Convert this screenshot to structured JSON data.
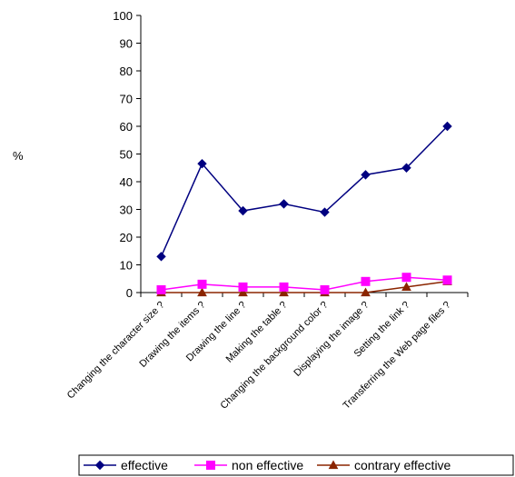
{
  "chart_data": {
    "type": "line",
    "ylabel": "%",
    "ylim": [
      0,
      100
    ],
    "ytick_step": 10,
    "grid": false,
    "legend_position": "bottom",
    "categories": [
      "Changing the character size ?",
      "Drawing the items ?",
      "Drawing the line ?",
      "Making the table ?",
      "Changing the background color ?",
      "Displaying the image ?",
      "Setting the link ?",
      "Transferring the Web page files ?"
    ],
    "series": [
      {
        "name": "effective",
        "color": "#000080",
        "marker": "diamond",
        "values": [
          13,
          46.5,
          29.5,
          32,
          29,
          42.5,
          45,
          60
        ]
      },
      {
        "name": "non effective",
        "color": "#ff00ff",
        "marker": "square",
        "values": [
          1,
          3,
          2,
          2,
          1,
          4,
          5.5,
          4.5
        ]
      },
      {
        "name": "contrary effective",
        "color": "#8b2500",
        "marker": "triangle",
        "values": [
          0,
          0,
          0,
          0,
          0,
          0,
          2,
          4
        ]
      }
    ]
  }
}
